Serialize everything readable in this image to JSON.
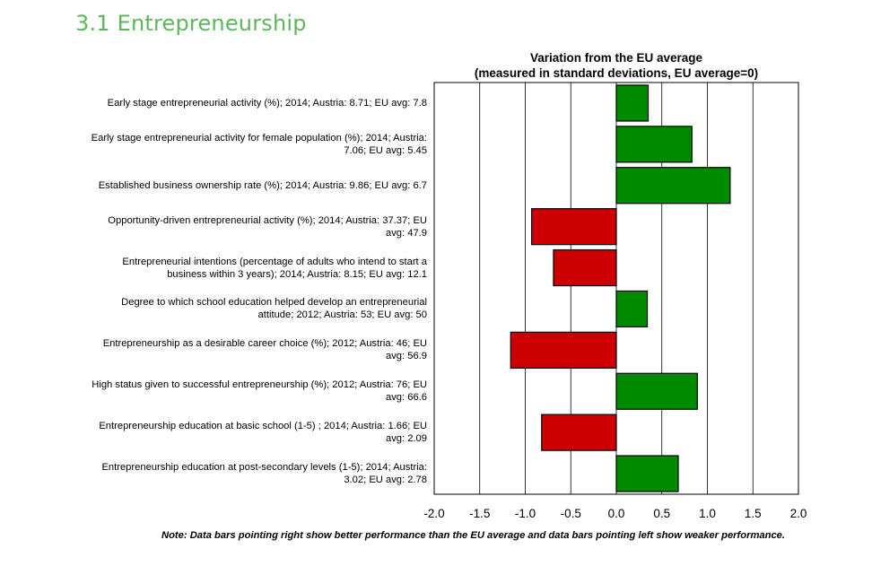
{
  "heading": "3.1 Entrepreneurship",
  "chart_data": {
    "type": "bar",
    "orientation": "horizontal",
    "title_lines": [
      "Variation from the EU average",
      "(measured in standard deviations, EU average=0)"
    ],
    "categories": [
      "Early stage entrepreneurial activity (%); 2014; Austria: 8.71; EU avg: 7.8",
      "Early stage entrepreneurial activity for female population (%); 2014; Austria: 7.06; EU avg: 5.45",
      "Established business ownership rate (%); 2014; Austria: 9.86; EU avg: 6.7",
      "Opportunity-driven entrepreneurial activity (%); 2014; Austria: 37.37; EU avg: 47.9",
      "Entrepreneurial intentions (percentage of adults who intend to start a business within 3 years); 2014; Austria: 8.15; EU avg: 12.1",
      "Degree to which school education helped develop an entrepreneurial attitude; 2012; Austria: 53; EU avg: 50",
      "Entrepreneurship as a desirable career choice (%); 2012; Austria: 46; EU avg: 56.9",
      "High status given to successful entrepreneurship (%); 2012; Austria: 76; EU avg: 66.6",
      "Entrepreneurship education at basic school (1-5) ; 2014; Austria: 1.66; EU avg: 2.09",
      "Entrepreneurship education at post-secondary levels (1-5); 2014; Austria: 3.02; EU avg: 2.78"
    ],
    "label_lines": [
      [
        "Early stage entrepreneurial activity (%); 2014; Austria: 8.71; EU avg: 7.8"
      ],
      [
        "Early stage entrepreneurial activity for female population (%); 2014; Austria:",
        "7.06; EU avg: 5.45"
      ],
      [
        "Established business ownership rate (%); 2014; Austria: 9.86; EU avg: 6.7"
      ],
      [
        "Opportunity-driven entrepreneurial activity (%); 2014; Austria: 37.37; EU",
        "avg: 47.9"
      ],
      [
        "Entrepreneurial intentions (percentage of adults who intend to start a",
        "business within 3 years); 2014; Austria: 8.15; EU avg: 12.1"
      ],
      [
        "Degree to which school education helped develop an entrepreneurial",
        "attitude; 2012; Austria: 53; EU avg: 50"
      ],
      [
        "Entrepreneurship as a desirable career choice (%); 2012; Austria: 46; EU",
        "avg: 56.9"
      ],
      [
        "High status given to successful entrepreneurship (%); 2012; Austria: 76; EU",
        "avg: 66.6"
      ],
      [
        "Entrepreneurship education at basic school (1-5) ; 2014; Austria: 1.66; EU",
        "avg: 2.09"
      ],
      [
        "Entrepreneurship education at post-secondary levels (1-5); 2014; Austria:",
        "3.02; EU avg: 2.78"
      ]
    ],
    "values": [
      0.35,
      0.83,
      1.25,
      -0.93,
      -0.69,
      0.34,
      -1.16,
      0.89,
      -0.82,
      0.68
    ],
    "xlim": [
      -2.0,
      2.0
    ],
    "xticks": [
      "-2.0",
      "-1.5",
      "-1.0",
      "-0.5",
      "0.0",
      "0.5",
      "1.0",
      "1.5",
      "2.0"
    ],
    "xtick_values": [
      -2.0,
      -1.5,
      -1.0,
      -0.5,
      0.0,
      0.5,
      1.0,
      1.5,
      2.0
    ],
    "colors": {
      "positive": "#008a00",
      "negative": "#cc0000",
      "bar_border": "#000000"
    },
    "grid": true,
    "note": "Note: Data bars pointing right show better performance than the EU average and data bars pointing left show weaker performance."
  }
}
